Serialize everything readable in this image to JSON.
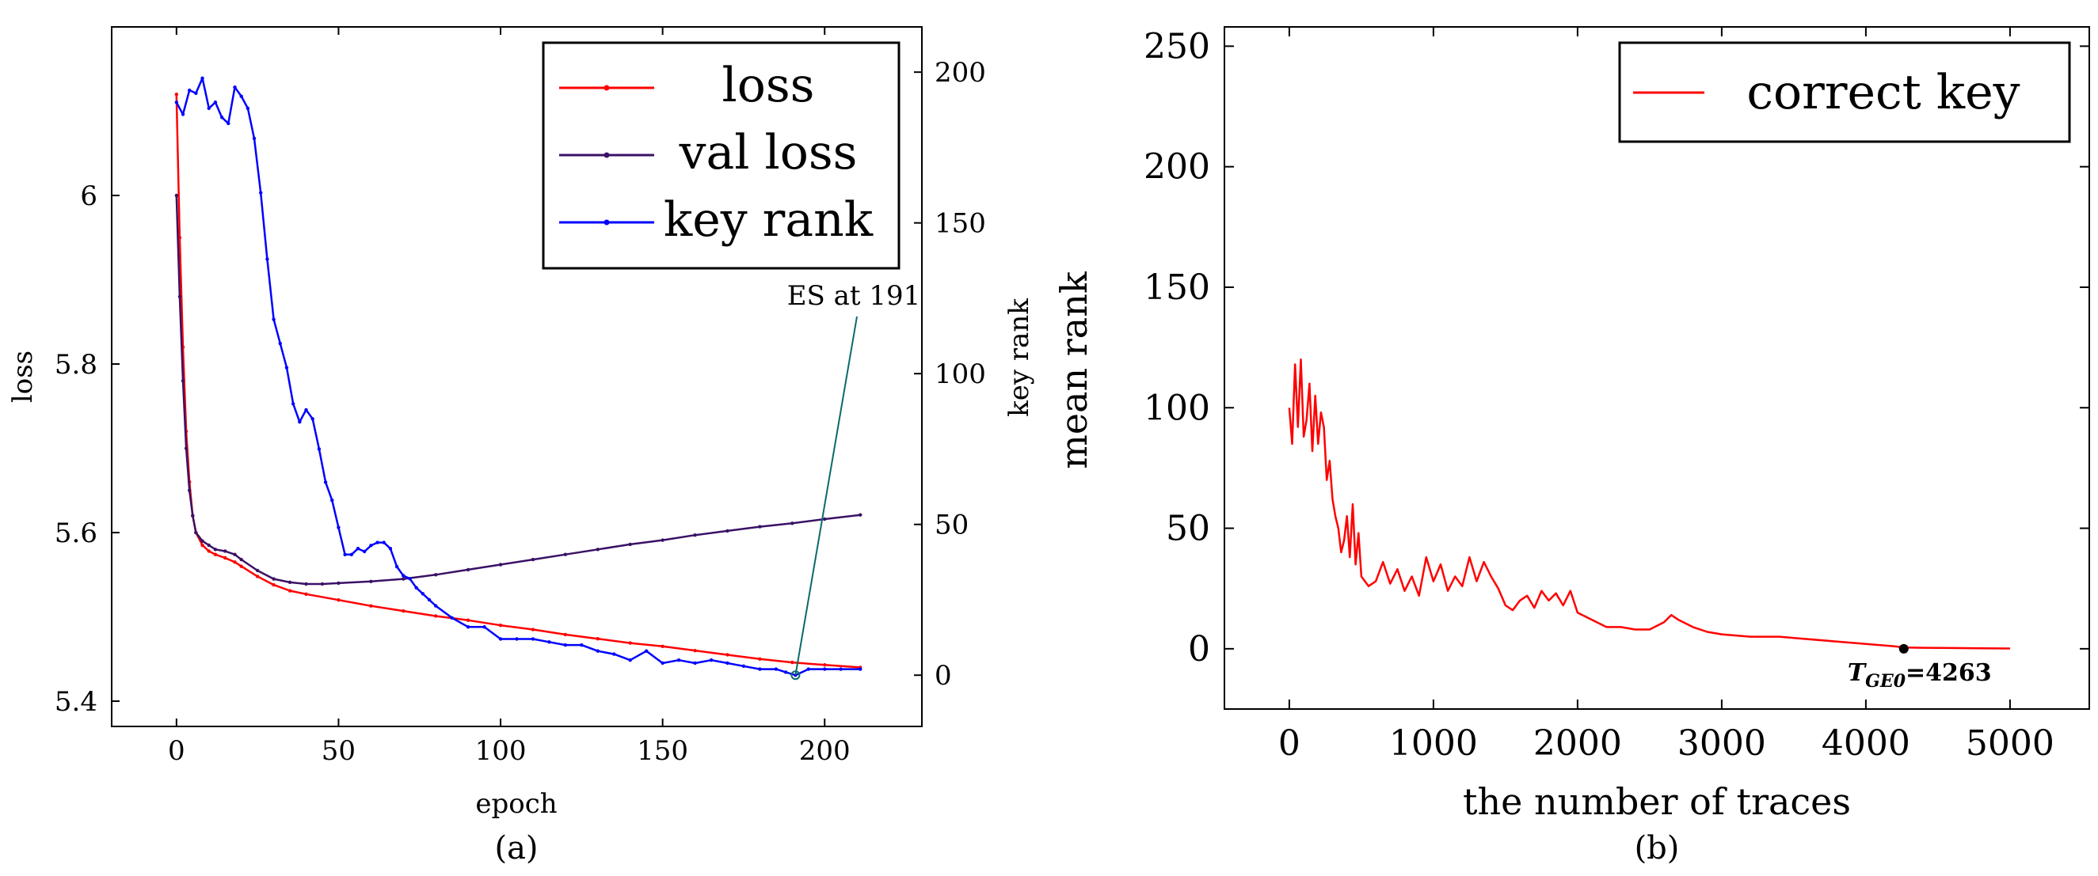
{
  "chart_data": [
    {
      "panel": "(a)",
      "type": "line",
      "xlabel": "epoch",
      "ylabel_left": "loss",
      "ylabel_right": "key rank",
      "xlim": [
        -20,
        230
      ],
      "ylim_left": [
        5.37,
        6.2
      ],
      "ylim_right": [
        -17,
        215
      ],
      "xticks": [
        0,
        50,
        100,
        150,
        200
      ],
      "yticks_left": [
        5.4,
        5.6,
        5.8,
        6
      ],
      "yticks_right": [
        0,
        50,
        100,
        150,
        200
      ],
      "ytick_labels_left": [
        "5.4",
        "5.6",
        "5.8",
        "6"
      ],
      "legend": [
        "loss",
        "val_loss",
        "key rank"
      ],
      "legend_display": [
        "loss",
        "val loss",
        "key rank"
      ],
      "annotation": "ES at 191",
      "annotation_point": [
        191,
        0
      ],
      "series": [
        {
          "name": "loss",
          "axis": "left",
          "color": "#ff0000",
          "x": [
            0,
            1,
            2,
            3,
            4,
            5,
            6,
            8,
            10,
            12,
            15,
            18,
            20,
            25,
            30,
            35,
            40,
            50,
            60,
            70,
            80,
            90,
            100,
            110,
            120,
            130,
            140,
            150,
            160,
            170,
            180,
            190,
            200,
            211
          ],
          "values": [
            6.12,
            5.95,
            5.82,
            5.72,
            5.66,
            5.62,
            5.6,
            5.585,
            5.578,
            5.574,
            5.57,
            5.565,
            5.56,
            5.548,
            5.538,
            5.531,
            5.527,
            5.52,
            5.513,
            5.507,
            5.501,
            5.496,
            5.49,
            5.485,
            5.479,
            5.474,
            5.469,
            5.465,
            5.46,
            5.455,
            5.45,
            5.446,
            5.443,
            5.44
          ]
        },
        {
          "name": "val_loss",
          "axis": "left",
          "color": "#3a1166",
          "x": [
            0,
            1,
            2,
            3,
            4,
            5,
            6,
            8,
            10,
            12,
            15,
            18,
            20,
            25,
            30,
            35,
            40,
            45,
            50,
            60,
            70,
            80,
            90,
            100,
            110,
            120,
            130,
            140,
            150,
            160,
            170,
            180,
            190,
            200,
            211
          ],
          "values": [
            6.0,
            5.88,
            5.78,
            5.7,
            5.65,
            5.62,
            5.6,
            5.59,
            5.585,
            5.58,
            5.578,
            5.574,
            5.568,
            5.555,
            5.545,
            5.541,
            5.539,
            5.539,
            5.54,
            5.542,
            5.545,
            5.55,
            5.556,
            5.562,
            5.568,
            5.574,
            5.58,
            5.586,
            5.591,
            5.597,
            5.602,
            5.607,
            5.611,
            5.616,
            5.621
          ]
        },
        {
          "name": "key rank",
          "axis": "right",
          "color": "#0000ff",
          "x": [
            0,
            2,
            4,
            6,
            8,
            10,
            12,
            14,
            16,
            18,
            20,
            22,
            24,
            26,
            28,
            30,
            32,
            34,
            36,
            38,
            40,
            42,
            44,
            46,
            48,
            50,
            52,
            54,
            56,
            58,
            60,
            62,
            64,
            66,
            68,
            70,
            72,
            74,
            76,
            78,
            80,
            85,
            90,
            95,
            100,
            105,
            110,
            115,
            120,
            125,
            130,
            135,
            140,
            145,
            150,
            155,
            160,
            165,
            170,
            175,
            180,
            185,
            188,
            191,
            195,
            200,
            205,
            211
          ],
          "values": [
            190,
            186,
            194,
            193,
            198,
            188,
            190,
            185,
            183,
            195,
            192,
            188,
            178,
            160,
            138,
            118,
            110,
            102,
            90,
            84,
            88,
            85,
            75,
            64,
            58,
            49,
            40,
            40,
            42,
            41,
            43,
            44,
            44,
            42,
            36,
            33,
            32,
            29,
            27,
            25,
            23,
            19,
            16,
            16,
            12,
            12,
            12,
            11,
            10,
            10,
            8,
            7,
            5,
            8,
            4,
            5,
            4,
            5,
            4,
            3,
            2,
            2,
            1,
            0,
            2,
            2,
            2,
            2
          ]
        }
      ]
    },
    {
      "panel": "(b)",
      "type": "line",
      "xlabel": "the number of traces",
      "ylabel": "mean rank",
      "xlim": [
        -450,
        5550
      ],
      "ylim": [
        -25,
        258
      ],
      "xticks": [
        0,
        1000,
        2000,
        3000,
        4000,
        5000
      ],
      "yticks": [
        0,
        50,
        100,
        150,
        200,
        250
      ],
      "legend": [
        "correct key"
      ],
      "annotation": "T_GE0=4263",
      "annotation_display": {
        "base": "T",
        "sub": "GE0",
        "value": "=4263"
      },
      "annotation_point": [
        4263,
        0
      ],
      "series": [
        {
          "name": "correct key",
          "color": "#ff0000",
          "x": [
            0,
            20,
            40,
            60,
            80,
            100,
            120,
            140,
            160,
            180,
            200,
            220,
            240,
            260,
            280,
            300,
            320,
            340,
            360,
            380,
            400,
            420,
            440,
            460,
            480,
            500,
            550,
            600,
            650,
            700,
            750,
            800,
            850,
            900,
            950,
            1000,
            1050,
            1100,
            1150,
            1200,
            1250,
            1300,
            1350,
            1400,
            1450,
            1500,
            1550,
            1600,
            1650,
            1700,
            1750,
            1800,
            1850,
            1900,
            1950,
            2000,
            2100,
            2200,
            2300,
            2400,
            2500,
            2600,
            2650,
            2700,
            2800,
            2900,
            3000,
            3200,
            3400,
            3600,
            3800,
            4000,
            4200,
            4263,
            4400,
            4600,
            4800,
            5000
          ],
          "values": [
            100,
            85,
            118,
            92,
            120,
            88,
            95,
            110,
            82,
            105,
            85,
            98,
            92,
            70,
            78,
            62,
            55,
            50,
            40,
            45,
            55,
            38,
            60,
            35,
            48,
            30,
            26,
            28,
            36,
            27,
            33,
            24,
            30,
            22,
            38,
            28,
            35,
            24,
            30,
            26,
            38,
            28,
            36,
            30,
            25,
            18,
            16,
            20,
            22,
            17,
            24,
            20,
            23,
            18,
            24,
            15,
            12,
            9,
            9,
            8,
            8,
            11,
            14,
            12,
            9,
            7,
            6,
            5,
            5,
            4,
            3,
            2,
            1,
            0.5,
            0.4,
            0.3,
            0.2,
            0.1
          ]
        }
      ]
    }
  ]
}
